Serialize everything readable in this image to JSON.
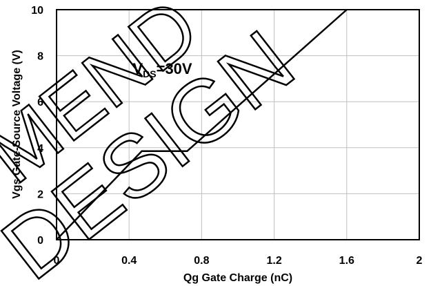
{
  "chart_data": {
    "type": "line",
    "xlabel": "Qg Gate Charge (nC)",
    "ylabel": "Vgs Gate-Source Voltage (V)",
    "xlim": [
      0,
      2
    ],
    "ylim": [
      0,
      10
    ],
    "x_ticks": [
      0,
      0.4,
      0.8,
      1.2,
      1.6,
      2
    ],
    "y_ticks": [
      0,
      2,
      4,
      6,
      8,
      10
    ],
    "x_tick_labels": [
      "0",
      "0.4",
      "0.8",
      "1.2",
      "1.6",
      "2"
    ],
    "y_tick_labels": [
      "0",
      "2",
      "4",
      "6",
      "8",
      "10"
    ],
    "grid": true,
    "series": [
      {
        "x": [
          0,
          0.47,
          0.72,
          1.6
        ],
        "y": [
          0,
          3.85,
          3.85,
          10
        ]
      }
    ],
    "annotation": {
      "main": "V",
      "sub": "DS",
      "rest": "=30V",
      "x": 0.42,
      "y": 7.2
    },
    "watermark": {
      "line1": "MEND",
      "line2": "DESIGN"
    }
  }
}
